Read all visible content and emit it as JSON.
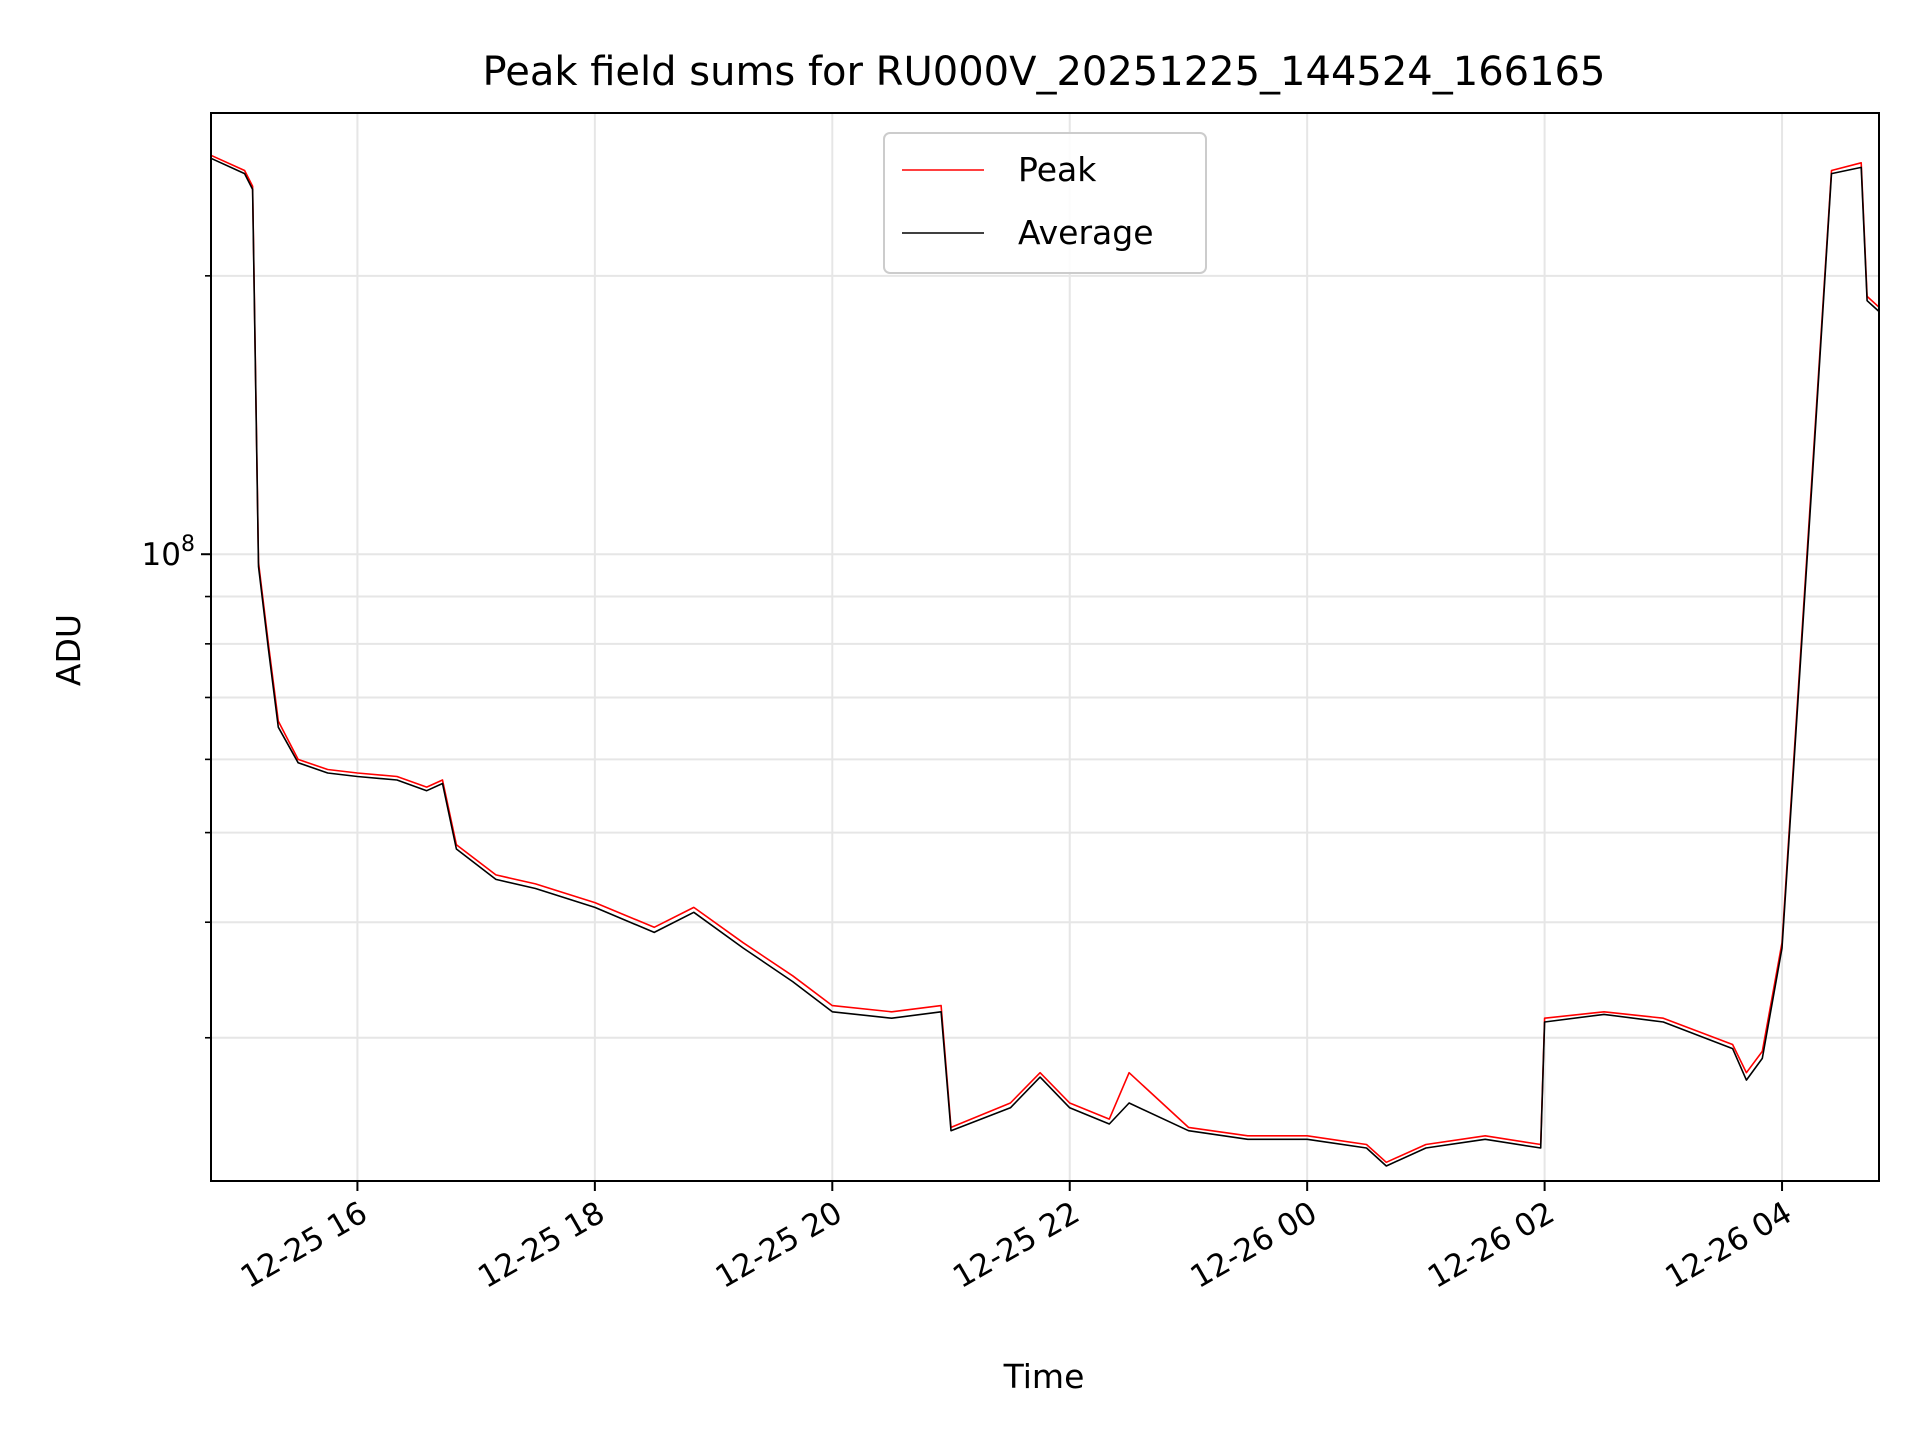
{
  "chart_data": {
    "type": "line",
    "title": "Peak field sums for RU000V_20251225_144524_166165",
    "xlabel": "Time",
    "ylabel": "ADU",
    "y_scale": "log",
    "ylim": [
      21000000,
      300000000
    ],
    "xlim": [
      "2025-12-25 14:46",
      "2025-12-26 04:49"
    ],
    "x_ticks": [
      "12-25 16",
      "12-25 18",
      "12-25 20",
      "12-25 22",
      "12-26 00",
      "12-26 02",
      "12-26 04"
    ],
    "x_tick_values": [
      "2025-12-25 16:00",
      "2025-12-25 18:00",
      "2025-12-25 20:00",
      "2025-12-25 22:00",
      "2025-12-26 00:00",
      "2025-12-26 02:00",
      "2025-12-26 04:00"
    ],
    "y_ticks": [
      {
        "label_base": "10",
        "label_exp": "8",
        "value": 100000000
      }
    ],
    "y_minor_ticks": [
      30000000,
      40000000,
      50000000,
      60000000,
      70000000,
      80000000,
      90000000,
      200000000
    ],
    "grid": true,
    "legend_position": "top-center",
    "series": [
      {
        "name": "Peak",
        "color": "#ff0000",
        "x": [
          "2025-12-25 14:46",
          "2025-12-25 15:03",
          "2025-12-25 15:07",
          "2025-12-25 15:10",
          "2025-12-25 15:15",
          "2025-12-25 15:20",
          "2025-12-25 15:30",
          "2025-12-25 15:45",
          "2025-12-25 16:00",
          "2025-12-25 16:20",
          "2025-12-25 16:35",
          "2025-12-25 16:43",
          "2025-12-25 16:50",
          "2025-12-25 17:10",
          "2025-12-25 17:30",
          "2025-12-25 18:00",
          "2025-12-25 18:30",
          "2025-12-25 18:50",
          "2025-12-25 19:15",
          "2025-12-25 19:40",
          "2025-12-25 20:00",
          "2025-12-25 20:30",
          "2025-12-25 20:55",
          "2025-12-25 21:00",
          "2025-12-25 21:30",
          "2025-12-25 21:45",
          "2025-12-25 22:00",
          "2025-12-25 22:20",
          "2025-12-25 22:30",
          "2025-12-25 23:00",
          "2025-12-25 23:30",
          "2025-12-26 00:00",
          "2025-12-26 00:30",
          "2025-12-26 00:40",
          "2025-12-26 01:00",
          "2025-12-26 01:30",
          "2025-12-26 01:58",
          "2025-12-26 02:00",
          "2025-12-26 02:30",
          "2025-12-26 03:00",
          "2025-12-26 03:35",
          "2025-12-26 03:42",
          "2025-12-26 03:50",
          "2025-12-26 04:00",
          "2025-12-26 04:15",
          "2025-12-26 04:25",
          "2025-12-26 04:40",
          "2025-12-26 04:43",
          "2025-12-26 04:49"
        ],
        "values": [
          270000000,
          260000000,
          250000000,
          98000000,
          80000000,
          66000000,
          60000000,
          58500000,
          58000000,
          57500000,
          56000000,
          57000000,
          48500000,
          45000000,
          44000000,
          42000000,
          39500000,
          41500000,
          38000000,
          35000000,
          32500000,
          32000000,
          32500000,
          24000000,
          25500000,
          27500000,
          25500000,
          24500000,
          27500000,
          24000000,
          23500000,
          23500000,
          23000000,
          22000000,
          23000000,
          23500000,
          23000000,
          31500000,
          32000000,
          31500000,
          29500000,
          27500000,
          29000000,
          38000000,
          120000000,
          260000000,
          265000000,
          190000000,
          185000000
        ]
      },
      {
        "name": "Average",
        "color": "#000000",
        "x": [
          "2025-12-25 14:46",
          "2025-12-25 15:03",
          "2025-12-25 15:07",
          "2025-12-25 15:10",
          "2025-12-25 15:15",
          "2025-12-25 15:20",
          "2025-12-25 15:30",
          "2025-12-25 15:45",
          "2025-12-25 16:00",
          "2025-12-25 16:20",
          "2025-12-25 16:35",
          "2025-12-25 16:43",
          "2025-12-25 16:50",
          "2025-12-25 17:10",
          "2025-12-25 17:30",
          "2025-12-25 18:00",
          "2025-12-25 18:30",
          "2025-12-25 18:50",
          "2025-12-25 19:15",
          "2025-12-25 19:40",
          "2025-12-25 20:00",
          "2025-12-25 20:30",
          "2025-12-25 20:55",
          "2025-12-25 21:00",
          "2025-12-25 21:30",
          "2025-12-25 21:45",
          "2025-12-25 22:00",
          "2025-12-25 22:20",
          "2025-12-25 22:30",
          "2025-12-25 23:00",
          "2025-12-25 23:30",
          "2025-12-26 00:00",
          "2025-12-26 00:30",
          "2025-12-26 00:40",
          "2025-12-26 01:00",
          "2025-12-26 01:30",
          "2025-12-26 01:58",
          "2025-12-26 02:00",
          "2025-12-26 02:30",
          "2025-12-26 03:00",
          "2025-12-26 03:35",
          "2025-12-26 03:42",
          "2025-12-26 03:50",
          "2025-12-26 04:00",
          "2025-12-26 04:15",
          "2025-12-26 04:25",
          "2025-12-26 04:40",
          "2025-12-26 04:43",
          "2025-12-26 04:49"
        ],
        "values": [
          268000000,
          258000000,
          248000000,
          97000000,
          79000000,
          65000000,
          59500000,
          58000000,
          57500000,
          57000000,
          55500000,
          56500000,
          48000000,
          44500000,
          43500000,
          41500000,
          39000000,
          41000000,
          37500000,
          34500000,
          32000000,
          31500000,
          32000000,
          23800000,
          25200000,
          27200000,
          25200000,
          24200000,
          25500000,
          23800000,
          23300000,
          23300000,
          22800000,
          21800000,
          22800000,
          23300000,
          22800000,
          31200000,
          31800000,
          31200000,
          29200000,
          27000000,
          28500000,
          37500000,
          118000000,
          258000000,
          262000000,
          188000000,
          183000000
        ]
      }
    ]
  }
}
